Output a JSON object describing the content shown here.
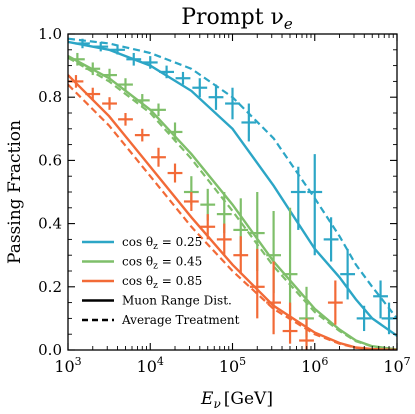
{
  "chart_data": {
    "type": "line",
    "title": "Prompt ν",
    "title_sub": "e",
    "xlabel": "E",
    "xlabel_sub": "ν",
    "xlabel_unit": "[GeV]",
    "ylabel": "Passing Fraction",
    "xscale": "log",
    "xlim": [
      1000,
      10000000
    ],
    "ylim": [
      0.0,
      1.0
    ],
    "x_ticks": [
      {
        "base": "10",
        "exp": "3",
        "value": 1000
      },
      {
        "base": "10",
        "exp": "4",
        "value": 10000
      },
      {
        "base": "10",
        "exp": "5",
        "value": 100000
      },
      {
        "base": "10",
        "exp": "6",
        "value": 1000000
      },
      {
        "base": "10",
        "exp": "7",
        "value": 10000000
      }
    ],
    "y_ticks": [
      "0.0",
      "0.2",
      "0.4",
      "0.6",
      "0.8",
      "1.0"
    ],
    "legend_placement": "lower-left",
    "legend": [
      {
        "label": "cos θ",
        "sub": "z",
        "eq": " = 0.25",
        "color": "#2ca6c6",
        "style": "solid"
      },
      {
        "label": "cos θ",
        "sub": "z",
        "eq": " = 0.45",
        "color": "#7fbf6a",
        "style": "solid"
      },
      {
        "label": "cos θ",
        "sub": "z",
        "eq": " = 0.85",
        "color": "#f26a37",
        "style": "solid"
      },
      {
        "label": "Muon Range Dist.",
        "color": "#000000",
        "style": "solid"
      },
      {
        "label": "Average Treatment",
        "color": "#000000",
        "style": "dashed"
      }
    ],
    "series": [
      {
        "name": "cos θz = 0.25",
        "color": "#2ca6c6",
        "solid": {
          "x": [
            1000,
            3162,
            10000,
            31623,
            100000,
            316228,
            1000000,
            2000000,
            3162278,
            5000000,
            10000000
          ],
          "y": [
            0.975,
            0.95,
            0.9,
            0.82,
            0.7,
            0.52,
            0.32,
            0.23,
            0.16,
            0.1,
            0.045
          ]
        },
        "dashed": {
          "x": [
            1000,
            3162,
            10000,
            31623,
            100000,
            316228,
            1000000,
            2000000,
            3162278,
            5000000,
            10000000
          ],
          "y": [
            0.985,
            0.97,
            0.94,
            0.89,
            0.8,
            0.67,
            0.48,
            0.36,
            0.27,
            0.2,
            0.1
          ]
        },
        "points": [
          {
            "x": 1500,
            "y": 0.97,
            "ylo": 0.955,
            "yhi": 0.985
          },
          {
            "x": 2500,
            "y": 0.96,
            "ylo": 0.945,
            "yhi": 0.975
          },
          {
            "x": 4000,
            "y": 0.95,
            "ylo": 0.935,
            "yhi": 0.965
          },
          {
            "x": 6300,
            "y": 0.92,
            "ylo": 0.9,
            "yhi": 0.94
          },
          {
            "x": 10000,
            "y": 0.91,
            "ylo": 0.89,
            "yhi": 0.93
          },
          {
            "x": 15800,
            "y": 0.88,
            "ylo": 0.86,
            "yhi": 0.9
          },
          {
            "x": 25000,
            "y": 0.86,
            "ylo": 0.84,
            "yhi": 0.88
          },
          {
            "x": 40000,
            "y": 0.83,
            "ylo": 0.8,
            "yhi": 0.86
          },
          {
            "x": 63000,
            "y": 0.8,
            "ylo": 0.76,
            "yhi": 0.84
          },
          {
            "x": 100000,
            "y": 0.78,
            "ylo": 0.73,
            "yhi": 0.83
          },
          {
            "x": 158000,
            "y": 0.72,
            "ylo": 0.66,
            "yhi": 0.78
          },
          {
            "x": 631000,
            "y": 0.5,
            "ylo": 0.38,
            "yhi": 0.58
          },
          {
            "x": 1000000,
            "y": 0.5,
            "ylo": 0.3,
            "yhi": 0.62
          },
          {
            "x": 1580000,
            "y": 0.35,
            "ylo": 0.28,
            "yhi": 0.42
          },
          {
            "x": 2510000,
            "y": 0.24,
            "ylo": 0.16,
            "yhi": 0.32
          },
          {
            "x": 3980000,
            "y": 0.1,
            "ylo": 0.06,
            "yhi": 0.14
          },
          {
            "x": 6310000,
            "y": 0.17,
            "ylo": 0.1,
            "yhi": 0.22
          },
          {
            "x": 8000000,
            "y": 0.1,
            "ylo": 0.05,
            "yhi": 0.15
          }
        ]
      },
      {
        "name": "cos θz = 0.45",
        "color": "#7fbf6a",
        "solid": {
          "x": [
            1000,
            3162,
            10000,
            31623,
            100000,
            316228,
            1000000,
            2000000,
            3162278,
            5000000,
            10000000
          ],
          "y": [
            0.93,
            0.86,
            0.76,
            0.62,
            0.46,
            0.28,
            0.13,
            0.065,
            0.03,
            0.012,
            0.002
          ]
        },
        "dashed": {
          "x": [
            1000,
            3162,
            10000,
            31623,
            100000,
            316228,
            1000000,
            2000000,
            3162278,
            5000000,
            10000000
          ],
          "y": [
            0.925,
            0.85,
            0.75,
            0.605,
            0.44,
            0.265,
            0.12,
            0.06,
            0.028,
            0.011,
            0.002
          ]
        },
        "points": [
          {
            "x": 1300,
            "y": 0.92,
            "ylo": 0.9,
            "yhi": 0.94
          },
          {
            "x": 2000,
            "y": 0.89,
            "ylo": 0.87,
            "yhi": 0.91
          },
          {
            "x": 3200,
            "y": 0.87,
            "ylo": 0.85,
            "yhi": 0.89
          },
          {
            "x": 5000,
            "y": 0.84,
            "ylo": 0.82,
            "yhi": 0.86
          },
          {
            "x": 8000,
            "y": 0.79,
            "ylo": 0.77,
            "yhi": 0.81
          },
          {
            "x": 12600,
            "y": 0.76,
            "ylo": 0.74,
            "yhi": 0.78
          },
          {
            "x": 20000,
            "y": 0.69,
            "ylo": 0.66,
            "yhi": 0.72
          },
          {
            "x": 31600,
            "y": 0.5,
            "ylo": 0.46,
            "yhi": 0.55
          },
          {
            "x": 50000,
            "y": 0.46,
            "ylo": 0.41,
            "yhi": 0.51
          },
          {
            "x": 79400,
            "y": 0.43,
            "ylo": 0.37,
            "yhi": 0.5
          },
          {
            "x": 126000,
            "y": 0.38,
            "ylo": 0.3,
            "yhi": 0.48
          },
          {
            "x": 200000,
            "y": 0.37,
            "ylo": 0.25,
            "yhi": 0.5
          },
          {
            "x": 316000,
            "y": 0.3,
            "ylo": 0.18,
            "yhi": 0.44
          },
          {
            "x": 501000,
            "y": 0.24,
            "ylo": 0.1,
            "yhi": 0.45
          },
          {
            "x": 794000,
            "y": 0.1,
            "ylo": 0.04,
            "yhi": 0.2
          }
        ]
      },
      {
        "name": "cos θz = 0.85",
        "color": "#f26a37",
        "solid": {
          "x": [
            1000,
            3162,
            10000,
            31623,
            100000,
            316228,
            1000000,
            2000000,
            3162278,
            5000000,
            10000000
          ],
          "y": [
            0.87,
            0.74,
            0.58,
            0.42,
            0.27,
            0.14,
            0.055,
            0.022,
            0.008,
            0.003,
            0.0
          ]
        },
        "dashed": {
          "x": [
            1000,
            3162,
            10000,
            31623,
            100000,
            316228,
            1000000,
            2000000,
            3162278,
            5000000,
            10000000
          ],
          "y": [
            0.84,
            0.71,
            0.55,
            0.39,
            0.25,
            0.13,
            0.05,
            0.02,
            0.007,
            0.002,
            0.0
          ]
        },
        "points": [
          {
            "x": 1250,
            "y": 0.85,
            "ylo": 0.83,
            "yhi": 0.87
          },
          {
            "x": 2000,
            "y": 0.81,
            "ylo": 0.79,
            "yhi": 0.83
          },
          {
            "x": 3200,
            "y": 0.78,
            "ylo": 0.76,
            "yhi": 0.8
          },
          {
            "x": 5000,
            "y": 0.73,
            "ylo": 0.71,
            "yhi": 0.75
          },
          {
            "x": 8000,
            "y": 0.68,
            "ylo": 0.66,
            "yhi": 0.7
          },
          {
            "x": 12600,
            "y": 0.61,
            "ylo": 0.58,
            "yhi": 0.64
          },
          {
            "x": 20000,
            "y": 0.56,
            "ylo": 0.53,
            "yhi": 0.59
          },
          {
            "x": 31600,
            "y": 0.47,
            "ylo": 0.44,
            "yhi": 0.5
          },
          {
            "x": 50000,
            "y": 0.39,
            "ylo": 0.35,
            "yhi": 0.43
          },
          {
            "x": 79400,
            "y": 0.35,
            "ylo": 0.3,
            "yhi": 0.4
          },
          {
            "x": 126000,
            "y": 0.3,
            "ylo": 0.24,
            "yhi": 0.36
          },
          {
            "x": 200000,
            "y": 0.2,
            "ylo": 0.1,
            "yhi": 0.32
          },
          {
            "x": 316000,
            "y": 0.15,
            "ylo": 0.05,
            "yhi": 0.28
          },
          {
            "x": 501000,
            "y": 0.06,
            "ylo": 0.02,
            "yhi": 0.15
          },
          {
            "x": 794000,
            "y": 0.03,
            "ylo": 0.0,
            "yhi": 0.1
          },
          {
            "x": 1780000,
            "y": 0.15,
            "ylo": 0.08,
            "yhi": 0.22
          }
        ]
      }
    ]
  }
}
